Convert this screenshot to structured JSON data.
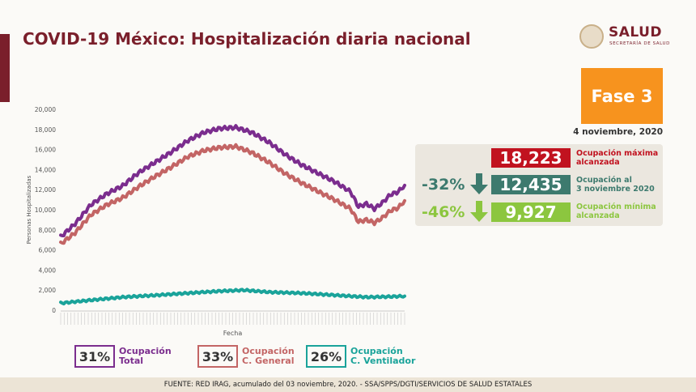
{
  "header": {
    "title": "COVID-19 México: Hospitalización diaria nacional",
    "logo_text": "SALUD",
    "logo_subtext": "SECRETARÍA DE SALUD",
    "accent_color": "#7a1f2b"
  },
  "phase": {
    "label": "Fase 3",
    "color": "#f7931e"
  },
  "report_date": "4 noviembre, 2020",
  "stats": {
    "max": {
      "value": "18,223",
      "label_line1": "Ocupación máxima",
      "label_line2": "alcanzada",
      "color": "#c1121f"
    },
    "current": {
      "value": "12,435",
      "label_line1": "Ocupación al",
      "label_line2": "3 noviembre 2020",
      "color": "#3d7a6e",
      "change": "-32%",
      "arrow": "arrow-down-icon"
    },
    "min": {
      "value": "9,927",
      "label_line1": "Ocupación mínima",
      "label_line2": "alcanzada",
      "color": "#8cc63f",
      "change": "-46%",
      "arrow": "arrow-down-icon"
    }
  },
  "chart_data": {
    "type": "line",
    "xlabel": "Fecha",
    "ylabel": "Personas Hospitalizadas",
    "ylim": [
      0,
      20000
    ],
    "y_ticks": [
      0,
      2000,
      4000,
      6000,
      8000,
      10000,
      12000,
      14000,
      16000,
      18000,
      20000
    ],
    "y_tick_labels": [
      "0",
      "2,000",
      "4,000",
      "6,000",
      "8,000",
      "10,000",
      "12,000",
      "14,000",
      "16,000",
      "18,000",
      "20,000"
    ],
    "grid": false,
    "x_range": [
      "2020-04-01",
      "2020-11-03"
    ],
    "series": [
      {
        "color": "#7b2d8e",
        "points": [
          [
            "2020-04-01",
            7300
          ],
          [
            "2020-04-10",
            8600
          ],
          [
            "2020-04-20",
            10500
          ],
          [
            "2020-04-30",
            11600
          ],
          [
            "2020-05-10",
            12400
          ],
          [
            "2020-05-20",
            13700
          ],
          [
            "2020-05-30",
            14700
          ],
          [
            "2020-06-10",
            15800
          ],
          [
            "2020-06-20",
            16900
          ],
          [
            "2020-06-30",
            17700
          ],
          [
            "2020-07-10",
            18100
          ],
          [
            "2020-07-20",
            18200
          ],
          [
            "2020-07-30",
            17700
          ],
          [
            "2020-08-10",
            16700
          ],
          [
            "2020-08-20",
            15500
          ],
          [
            "2020-08-30",
            14500
          ],
          [
            "2020-09-10",
            13600
          ],
          [
            "2020-09-20",
            12800
          ],
          [
            "2020-09-30",
            11800
          ],
          [
            "2020-10-05",
            10300
          ],
          [
            "2020-10-10",
            10600
          ],
          [
            "2020-10-15",
            10100
          ],
          [
            "2020-10-20",
            10700
          ],
          [
            "2020-10-25",
            11500
          ],
          [
            "2020-10-30",
            11800
          ],
          [
            "2020-11-03",
            12435
          ]
        ]
      },
      {
        "color": "#c36565",
        "points": [
          [
            "2020-04-01",
            6600
          ],
          [
            "2020-04-10",
            7700
          ],
          [
            "2020-04-20",
            9500
          ],
          [
            "2020-04-30",
            10500
          ],
          [
            "2020-05-10",
            11200
          ],
          [
            "2020-05-20",
            12300
          ],
          [
            "2020-05-30",
            13300
          ],
          [
            "2020-06-10",
            14300
          ],
          [
            "2020-06-20",
            15300
          ],
          [
            "2020-06-30",
            15900
          ],
          [
            "2020-07-10",
            16200
          ],
          [
            "2020-07-20",
            16300
          ],
          [
            "2020-07-30",
            15700
          ],
          [
            "2020-08-10",
            14700
          ],
          [
            "2020-08-20",
            13600
          ],
          [
            "2020-08-30",
            12700
          ],
          [
            "2020-09-10",
            11800
          ],
          [
            "2020-09-20",
            11000
          ],
          [
            "2020-09-30",
            10100
          ],
          [
            "2020-10-05",
            8800
          ],
          [
            "2020-10-10",
            9000
          ],
          [
            "2020-10-15",
            8700
          ],
          [
            "2020-10-20",
            9200
          ],
          [
            "2020-10-25",
            9900
          ],
          [
            "2020-10-30",
            10200
          ],
          [
            "2020-11-03",
            10900
          ]
        ]
      },
      {
        "color": "#1aa39a",
        "points": [
          [
            "2020-04-01",
            700
          ],
          [
            "2020-04-20",
            1000
          ],
          [
            "2020-05-10",
            1300
          ],
          [
            "2020-06-01",
            1500
          ],
          [
            "2020-06-20",
            1700
          ],
          [
            "2020-07-10",
            1900
          ],
          [
            "2020-07-25",
            2000
          ],
          [
            "2020-08-10",
            1800
          ],
          [
            "2020-08-30",
            1700
          ],
          [
            "2020-09-20",
            1500
          ],
          [
            "2020-10-10",
            1300
          ],
          [
            "2020-10-25",
            1350
          ],
          [
            "2020-11-03",
            1400
          ]
        ]
      }
    ]
  },
  "legend": [
    {
      "pct": "31%",
      "line1": "Ocupación",
      "line2": "Total",
      "color": "#7b2d8e"
    },
    {
      "pct": "33%",
      "line1": "Ocupación",
      "line2": "C. General",
      "color": "#c36565"
    },
    {
      "pct": "26%",
      "line1": "Ocupación",
      "line2": "C. Ventilador",
      "color": "#1aa39a"
    }
  ],
  "footer": "FUENTE: RED IRAG, acumulado del 03 noviembre, 2020. -  SSA/SPPS/DGTI/SERVICIOS DE SALUD ESTATALES"
}
